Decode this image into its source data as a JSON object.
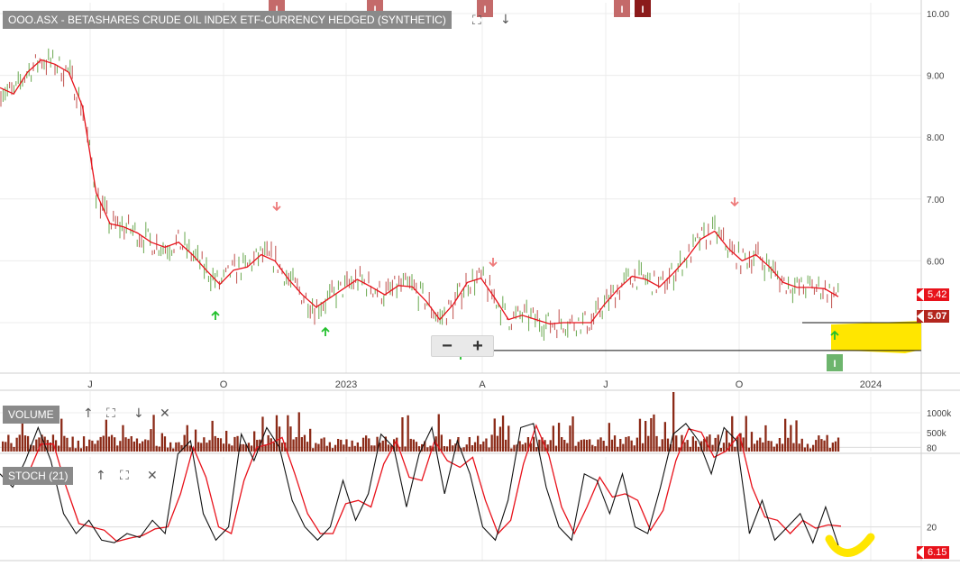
{
  "price_panel": {
    "title": "OOO.ASX - BETASHARES CRUDE OIL INDEX ETF-CURRENCY HEDGED (SYNTHETIC)",
    "last_price_label": "5.42",
    "ma_price_label": "5.07",
    "y_ticks": [
      "10.00",
      "9.00",
      "8.00",
      "7.00",
      "6.00"
    ],
    "x_ticks": [
      "J",
      "O",
      "2023",
      "A",
      "J",
      "O",
      "2024"
    ],
    "event_marker_label": "I",
    "zoom_out": "−",
    "zoom_in": "+"
  },
  "volume_panel": {
    "title": "VOLUME",
    "y_ticks": [
      "1000k",
      "500k"
    ]
  },
  "stoch_panel": {
    "title": "STOCH (21)",
    "y_ticks": [
      "80",
      "20"
    ],
    "last_value_label": "6.15"
  },
  "colors": {
    "ma_line": "#e8121b",
    "up_bar": "#6aa84f",
    "down_bar": "#c0504d",
    "volume_bar": "#8b2a17",
    "highlight": "#ffe600",
    "title_box": "#8a8a8a",
    "up_arrow": "#22c02c",
    "down_arrow": "#ee7a7a",
    "event_red": "#c46a6a",
    "event_green": "#6db56d"
  },
  "chart_data": [
    {
      "type": "line",
      "title": "OOO.ASX - BETASHARES CRUDE OIL INDEX ETF-CURRENCY HEDGED (SYNTHETIC)",
      "x_labels": [
        "J",
        "O",
        "2023",
        "A",
        "J",
        "O",
        "2024"
      ],
      "ylim": [
        4.2,
        10.1
      ],
      "series": [
        {
          "values": [
            8.8,
            8.7,
            9.05,
            9.25,
            9.18,
            9.05,
            8.5,
            7.1,
            6.6,
            6.55,
            6.45,
            6.3,
            6.22,
            6.3,
            6.1,
            5.85,
            5.62,
            5.85,
            5.9,
            6.1,
            6.0,
            5.7,
            5.45,
            5.25,
            5.4,
            5.55,
            5.7,
            5.58,
            5.45,
            5.6,
            5.58,
            5.35,
            5.05,
            5.3,
            5.65,
            5.72,
            5.4,
            5.05,
            5.12,
            5.05,
            4.98,
            5.0,
            5.0,
            5.0,
            5.3,
            5.55,
            5.75,
            5.7,
            5.58,
            5.8,
            6.05,
            6.35,
            6.48,
            6.2,
            6.0,
            6.1,
            5.9,
            5.65,
            5.57,
            5.57,
            5.55,
            5.42
          ]
        }
      ],
      "last_price": 5.42,
      "ma_price": 5.07,
      "reference_levels": [
        5.0,
        4.55
      ]
    },
    {
      "type": "bar",
      "title": "VOLUME",
      "y_ticks": [
        "1000k",
        "500k"
      ],
      "note": "daily volume bars, mostly 100k-600k with a spike near 1500k in September 2023"
    },
    {
      "type": "line",
      "title": "STOCH (21)",
      "ylim": [
        0,
        100
      ],
      "y_ticks": [
        80,
        20
      ],
      "series": [
        {
          "values": [
            60,
            50,
            70,
            95,
            70,
            30,
            15,
            25,
            10,
            8,
            15,
            12,
            25,
            15,
            75,
            85,
            30,
            10,
            20,
            90,
            70,
            95,
            80,
            40,
            20,
            10,
            20,
            55,
            25,
            45,
            90,
            80,
            35,
            75,
            95,
            45,
            85,
            60,
            20,
            10,
            40,
            95,
            98,
            50,
            20,
            10,
            60,
            55,
            30,
            60,
            20,
            15,
            50,
            90,
            98,
            85,
            60,
            95,
            85,
            15,
            40,
            10,
            20,
            30,
            8,
            35,
            6.15
          ]
        }
      ],
      "last_value": 6.15
    }
  ]
}
